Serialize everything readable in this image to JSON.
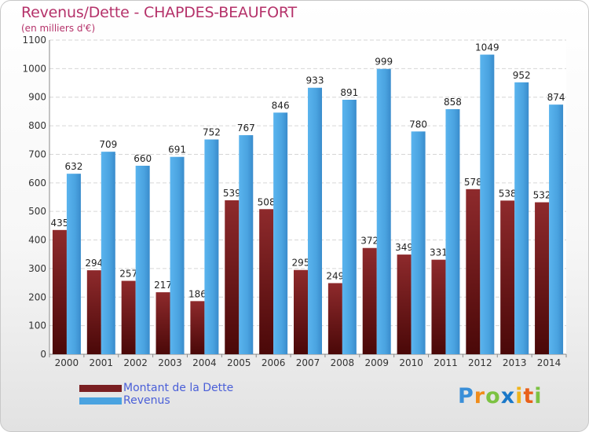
{
  "chart": {
    "title": "Revenus/Dette - CHAPDES-BEAUFORT",
    "unit": "(en milliers d'€)"
  },
  "chart_data": {
    "type": "bar",
    "categories": [
      "2000",
      "2001",
      "2002",
      "2003",
      "2004",
      "2005",
      "2006",
      "2007",
      "2008",
      "2009",
      "2010",
      "2011",
      "2012",
      "2013",
      "2014"
    ],
    "series": [
      {
        "name": "Montant de la Dette",
        "color": "#7a1f22",
        "values": [
          435,
          294,
          257,
          217,
          186,
          539,
          508,
          295,
          249,
          372,
          349,
          331,
          578,
          538,
          532
        ]
      },
      {
        "name": "Revenus",
        "color": "#4aa3e0",
        "values": [
          632,
          709,
          660,
          691,
          752,
          767,
          846,
          933,
          891,
          999,
          780,
          858,
          1049,
          952,
          874
        ]
      }
    ],
    "ylim": [
      0,
      1100
    ],
    "yticks": [
      0,
      100,
      200,
      300,
      400,
      500,
      600,
      700,
      800,
      900,
      1000,
      1100
    ],
    "grid": true,
    "legend": "bottom-left"
  },
  "legend": {
    "items": [
      {
        "label": "Montant de la Dette",
        "color": "#7a1f22"
      },
      {
        "label": "Revenus",
        "color": "#4aa3e0"
      }
    ]
  },
  "brand": {
    "letters": [
      "P",
      "r",
      "o",
      "x",
      "i",
      "t",
      "i"
    ],
    "colors": [
      "#3a8fd8",
      "#f08c1a",
      "#7cc242",
      "#1a78c8",
      "#f0b41a",
      "#e8601a",
      "#7cc242"
    ]
  }
}
